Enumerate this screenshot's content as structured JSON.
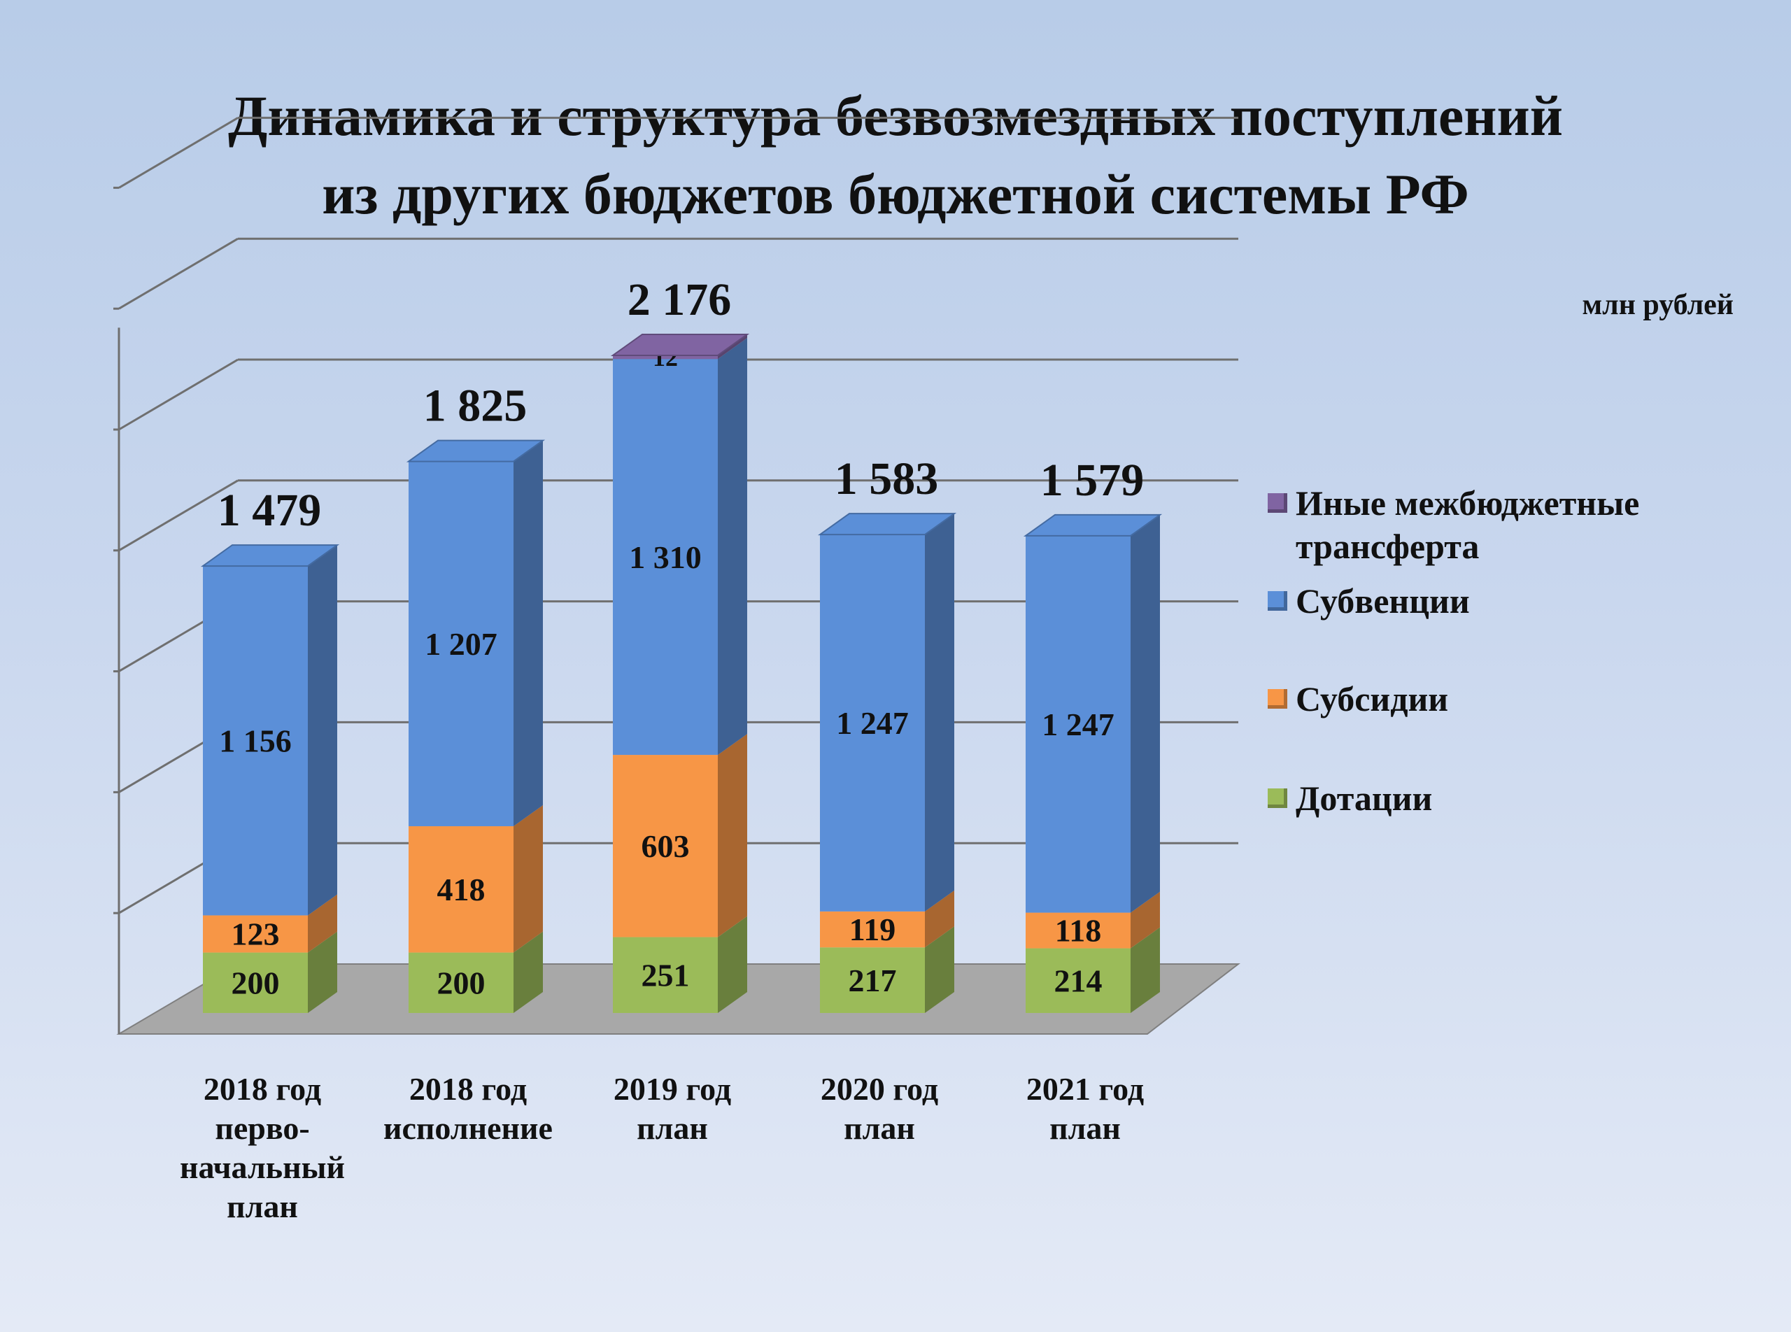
{
  "chart_data": {
    "type": "bar",
    "stacked": true,
    "title_lines": [
      "Динамика и структура безвозмездных поступлений",
      "из других бюджетов бюджетной системы РФ"
    ],
    "unit": "млн рублей",
    "categories": [
      [
        "2018 год",
        "перво-",
        "начальный",
        "план"
      ],
      [
        "2018 год",
        "исполнение"
      ],
      [
        "2019 год",
        "план"
      ],
      [
        "2020 год",
        "план"
      ],
      [
        "2021 год",
        "план"
      ]
    ],
    "series": [
      {
        "name": "Дотации",
        "color": "#9bbb59",
        "values": [
          200,
          200,
          251,
          217,
          214
        ],
        "labels": [
          "200",
          "200",
          "251",
          "217",
          "214"
        ]
      },
      {
        "name": "Субсидии",
        "color": "#f79646",
        "values": [
          123,
          418,
          603,
          119,
          118
        ],
        "labels": [
          "123",
          "418",
          "603",
          "119",
          "118"
        ]
      },
      {
        "name": "Субвенции",
        "color": "#5b8fd8",
        "values": [
          1156,
          1207,
          1310,
          1247,
          1247
        ],
        "labels": [
          "1 156",
          "1 207",
          "1 310",
          "1 247",
          "1 247"
        ]
      },
      {
        "name": "Иные межбюджетные трансферта",
        "legend_lines": [
          "Иные межбюджетные",
          "трансферта"
        ],
        "color": "#8064a2",
        "values": [
          0,
          0,
          12,
          0,
          0
        ],
        "labels": [
          "",
          "",
          "12",
          "",
          ""
        ]
      }
    ],
    "totals": [
      1479,
      1825,
      2176,
      1583,
      1579
    ],
    "total_labels": [
      "1 479",
      "1 825",
      "2 176",
      "1 583",
      "1 579"
    ],
    "legend_order": [
      3,
      2,
      1,
      0
    ],
    "legend_position": "right",
    "grid": true,
    "style": "3d",
    "ylim": [
      0,
      2800
    ]
  }
}
